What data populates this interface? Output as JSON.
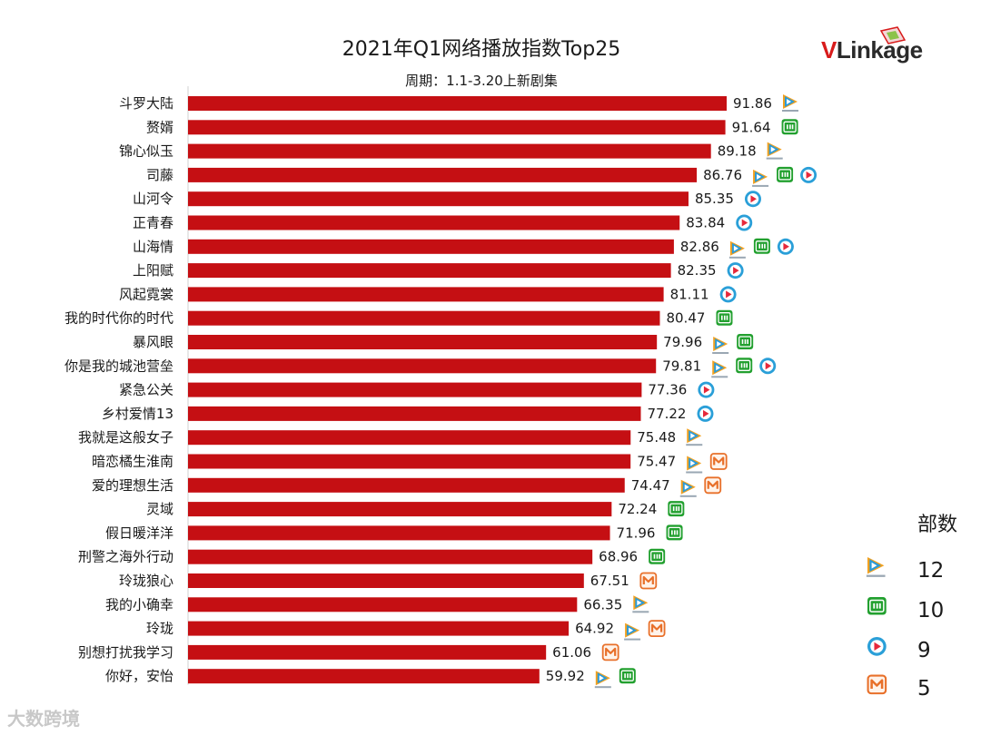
{
  "header": {
    "title": "2021年Q1网络播放指数Top25",
    "subtitle": "周期：1.1-3.20上新剧集",
    "logo_v": "V",
    "logo_rest": "Linkage"
  },
  "watermark": "大数跨境",
  "colors": {
    "bar": "#c50f13",
    "tencent": "#2a9ad8",
    "iqiyi": "#22a02f",
    "youku": "#2a9fd8",
    "mango": "#e8702a"
  },
  "legend": {
    "title": "部数",
    "items": [
      {
        "icon": "tencent-video-icon",
        "count": "12"
      },
      {
        "icon": "iqiyi-icon",
        "count": "10"
      },
      {
        "icon": "youku-icon",
        "count": "9"
      },
      {
        "icon": "mango-tv-icon",
        "count": "5"
      }
    ]
  },
  "chart_data": {
    "type": "bar",
    "orientation": "horizontal",
    "title": "2021年Q1网络播放指数Top25",
    "subtitle": "周期：1.1-3.20上新剧集",
    "categories": [
      "斗罗大陆",
      "赘婿",
      "锦心似玉",
      "司藤",
      "山河令",
      "正青春",
      "山海情",
      "上阳赋",
      "风起霓裳",
      "我的时代你的时代",
      "暴风眼",
      "你是我的城池营垒",
      "紧急公关",
      "乡村爱情13",
      "我就是这般女子",
      "暗恋橘生淮南",
      "爱的理想生活",
      "灵域",
      "假日暖洋洋",
      "刑警之海外行动",
      "玲珑狼心",
      "我的小确幸",
      "玲珑",
      "别想打扰我学习",
      "你好，安怡"
    ],
    "values": [
      91.86,
      91.64,
      89.18,
      86.76,
      85.35,
      83.84,
      82.86,
      82.35,
      81.11,
      80.47,
      79.96,
      79.81,
      77.36,
      77.22,
      75.48,
      75.47,
      74.47,
      72.24,
      71.96,
      68.96,
      67.51,
      66.35,
      64.92,
      61.06,
      59.92
    ],
    "value_labels": [
      "91.86",
      "91.64",
      "89.18",
      "86.76",
      "85.35",
      "83.84",
      "82.86",
      "82.35",
      "81.11",
      "80.47",
      "79.96",
      "79.81",
      "77.36",
      "77.22",
      "75.48",
      "75.47",
      "74.47",
      "72.24",
      "71.96",
      "68.96",
      "67.51",
      "66.35",
      "64.92",
      "61.06",
      "59.92"
    ],
    "platforms": [
      [
        "tencent"
      ],
      [
        "iqiyi"
      ],
      [
        "tencent"
      ],
      [
        "tencent",
        "iqiyi",
        "youku"
      ],
      [
        "youku"
      ],
      [
        "youku"
      ],
      [
        "tencent",
        "iqiyi",
        "youku"
      ],
      [
        "youku"
      ],
      [
        "youku"
      ],
      [
        "iqiyi"
      ],
      [
        "tencent",
        "iqiyi"
      ],
      [
        "tencent",
        "iqiyi",
        "youku"
      ],
      [
        "youku"
      ],
      [
        "youku"
      ],
      [
        "tencent"
      ],
      [
        "tencent",
        "mango"
      ],
      [
        "tencent",
        "mango"
      ],
      [
        "iqiyi"
      ],
      [
        "iqiyi"
      ],
      [
        "iqiyi"
      ],
      [
        "mango"
      ],
      [
        "tencent"
      ],
      [
        "tencent",
        "mango"
      ],
      [
        "mango"
      ],
      [
        "tencent",
        "iqiyi"
      ]
    ],
    "xlim": [
      0,
      93
    ],
    "grid": false,
    "legend": "right"
  }
}
